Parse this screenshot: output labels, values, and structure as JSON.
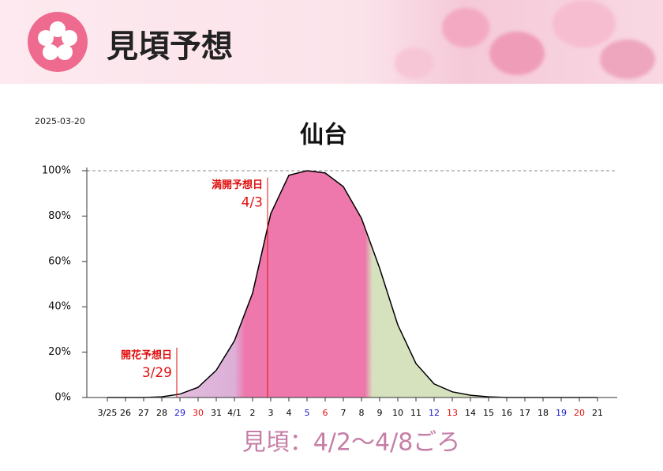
{
  "header": {
    "title": "見頃予想"
  },
  "chart_data": {
    "type": "area",
    "date": "2025-03-20",
    "title": "仙台",
    "categories": [
      "3/25",
      "26",
      "27",
      "28",
      "29",
      "30",
      "31",
      "4/1",
      "2",
      "3",
      "4",
      "5",
      "6",
      "7",
      "8",
      "9",
      "10",
      "11",
      "12",
      "13",
      "14",
      "15",
      "16",
      "17",
      "18",
      "19",
      "20",
      "21"
    ],
    "category_colors": [
      "#000",
      "#000",
      "#000",
      "#000",
      "#1a1acc",
      "#e01010",
      "#000",
      "#000",
      "#000",
      "#000",
      "#000",
      "#1a1acc",
      "#e01010",
      "#000",
      "#000",
      "#000",
      "#000",
      "#000",
      "#1a1acc",
      "#e01010",
      "#000",
      "#000",
      "#000",
      "#000",
      "#000",
      "#1a1acc",
      "#e01010",
      "#000"
    ],
    "values": [
      0,
      0,
      0,
      0.3,
      1.5,
      4.5,
      12,
      25,
      46,
      81,
      98,
      100,
      99,
      93,
      79,
      57,
      32,
      15,
      6,
      2.5,
      1,
      0.3,
      0,
      0,
      0,
      0,
      0,
      0
    ],
    "color": "#000000",
    "ylim": [
      0,
      100
    ],
    "yticks": [
      {
        "value": 0,
        "label": "0%"
      },
      {
        "value": 20,
        "label": "20%"
      },
      {
        "value": 40,
        "label": "40%"
      },
      {
        "value": 60,
        "label": "60%"
      },
      {
        "value": 80,
        "label": "80%"
      },
      {
        "value": 100,
        "label": "100%"
      }
    ],
    "annotations": [
      {
        "text": "開花予想日",
        "date": "3/29",
        "category": 4
      },
      {
        "text": "満開予想日",
        "date": "4/3",
        "category": 9
      }
    ],
    "footer": "見頃：4/2〜4/8ごろ"
  }
}
